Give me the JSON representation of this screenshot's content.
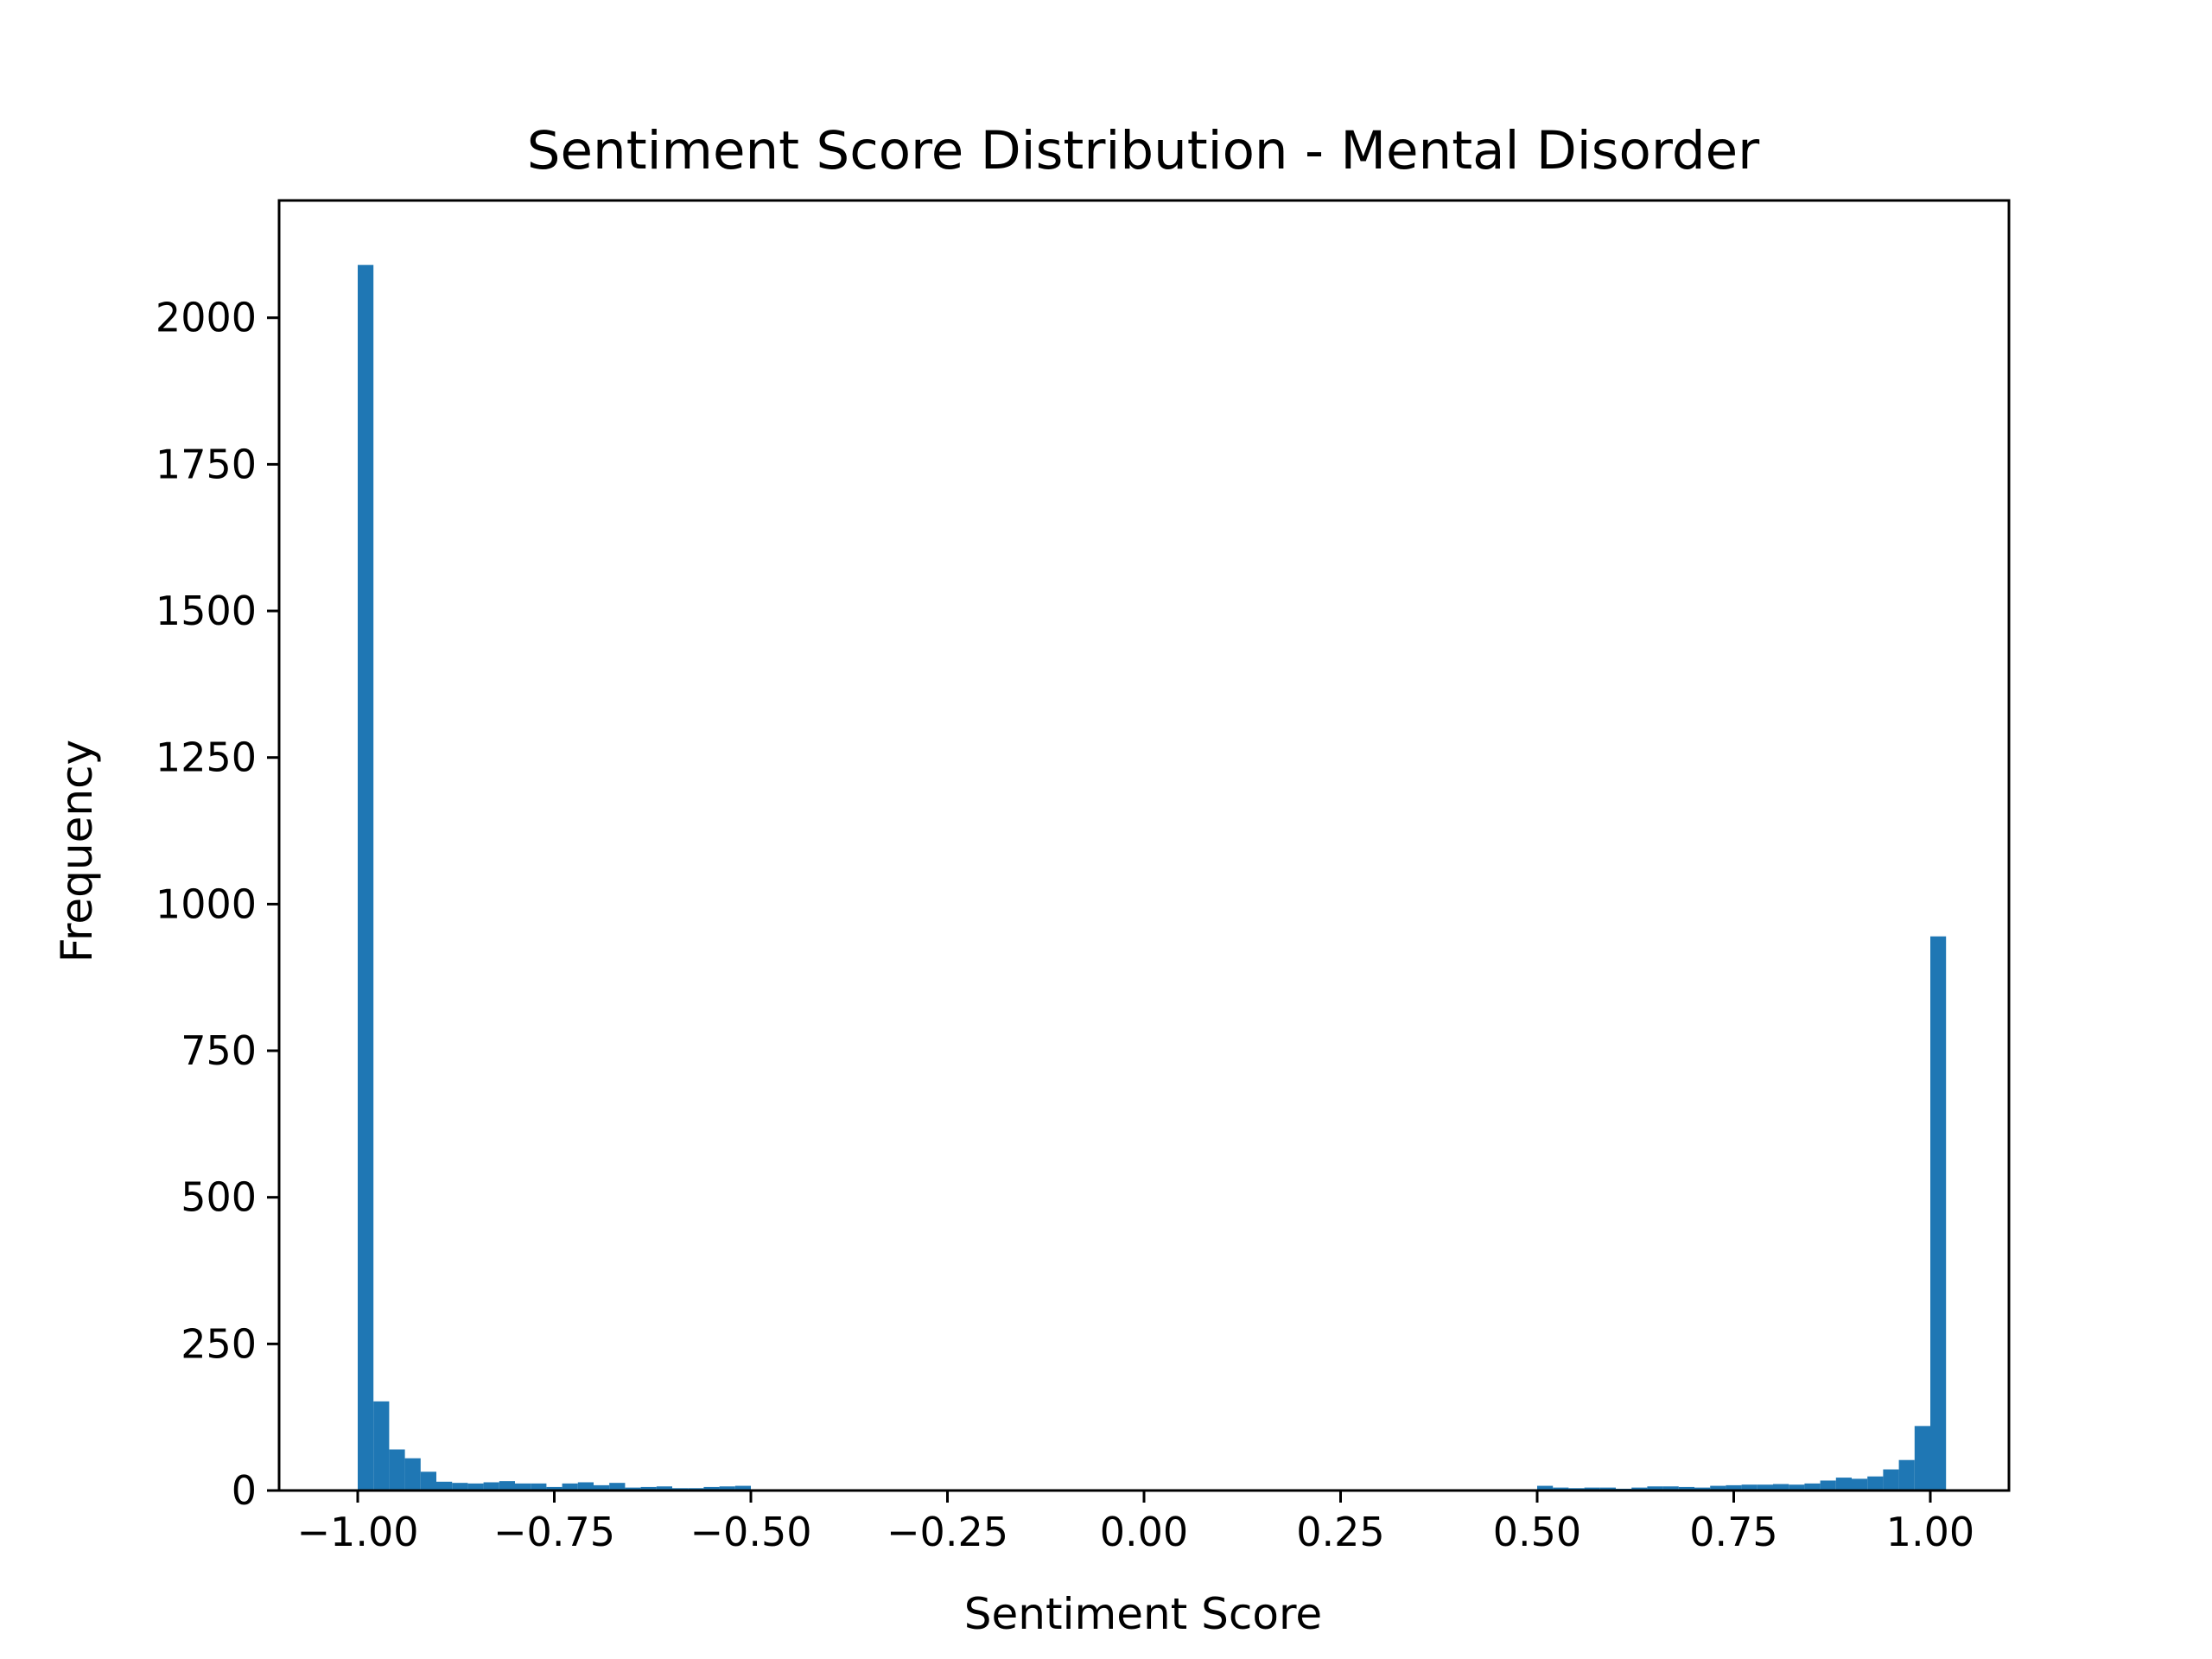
{
  "chart_data": {
    "type": "bar",
    "title": "Sentiment Score Distribution - Mental Disorder",
    "xlabel": "Sentiment Score",
    "ylabel": "Frequency",
    "xlim": [
      -1.1,
      1.1
    ],
    "ylim": [
      0,
      2200
    ],
    "xticks": [
      -1.0,
      -0.75,
      -0.5,
      -0.25,
      0.0,
      0.25,
      0.5,
      0.75,
      1.0
    ],
    "xtick_labels": [
      "−1.00",
      "−0.75",
      "−0.50",
      "−0.25",
      "0.00",
      "0.25",
      "0.50",
      "0.75",
      "1.00"
    ],
    "yticks": [
      0,
      250,
      500,
      750,
      1000,
      1250,
      1500,
      1750,
      2000
    ],
    "ytick_labels": [
      "0",
      "250",
      "500",
      "750",
      "1000",
      "1250",
      "1500",
      "1750",
      "2000"
    ],
    "bin_start": -1.0,
    "bin_width": 0.02,
    "values": [
      2090,
      152,
      70,
      55,
      32,
      15,
      13,
      12,
      14,
      16,
      12,
      12,
      6,
      12,
      14,
      9,
      13,
      5,
      6,
      7,
      4,
      4,
      6,
      7,
      8,
      0,
      0,
      0,
      0,
      0,
      0,
      0,
      0,
      0,
      0,
      0,
      0,
      0,
      0,
      0,
      0,
      0,
      0,
      0,
      0,
      0,
      0,
      0,
      0,
      0,
      0,
      0,
      0,
      0,
      0,
      0,
      0,
      0,
      0,
      0,
      0,
      0,
      0,
      0,
      0,
      0,
      0,
      0,
      0,
      0,
      0,
      0,
      0,
      0,
      0,
      8,
      5,
      4,
      5,
      5,
      3,
      5,
      7,
      7,
      6,
      5,
      8,
      9,
      10,
      10,
      11,
      10,
      12,
      17,
      22,
      20,
      24,
      36,
      52,
      110,
      945
    ],
    "bar_color": "#1f77b4",
    "grid": false
  }
}
